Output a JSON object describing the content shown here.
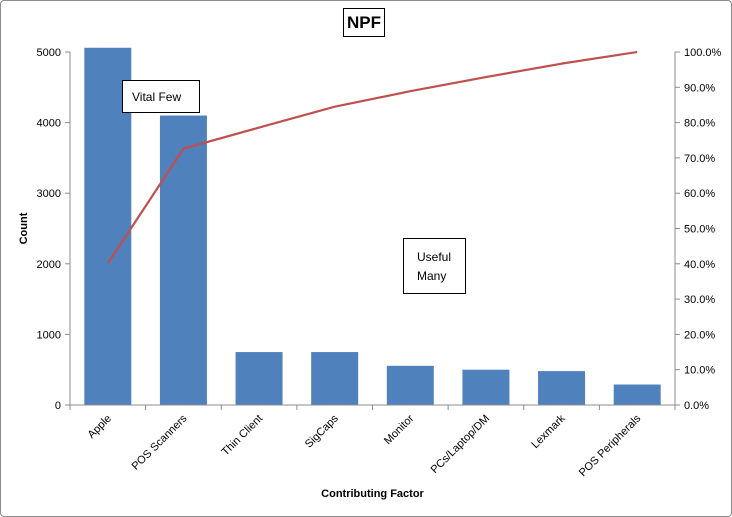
{
  "chart_data": {
    "type": "bar",
    "title": "NPF",
    "xlabel": "Contributing Factor",
    "ylabel": "Count",
    "categories": [
      "Apple",
      "POS Scanners",
      "Thin Client",
      "SigCaps",
      "Monitor",
      "PCs/Laptop/DM",
      "Lexmark",
      "POS Peripherals"
    ],
    "series": [
      {
        "type": "bar",
        "axis": "left",
        "color": "#4f81bd",
        "values": [
          5060,
          4100,
          750,
          750,
          555,
          500,
          480,
          290
        ]
      },
      {
        "type": "line",
        "axis": "right",
        "color": "#c0504d",
        "values": [
          40.1,
          72.6,
          78.6,
          84.5,
          88.9,
          92.9,
          96.7,
          100.0
        ]
      }
    ],
    "ylim": [
      0,
      5000
    ],
    "y_ticks": [
      "0",
      "1000",
      "2000",
      "3000",
      "4000",
      "5000"
    ],
    "y2lim": [
      0,
      100
    ],
    "y2_ticks": [
      "0.0%",
      "10.0%",
      "20.0%",
      "30.0%",
      "40.0%",
      "50.0%",
      "60.0%",
      "70.0%",
      "80.0%",
      "90.0%",
      "100.0%"
    ],
    "grid": false,
    "legend": "none",
    "annotations": [
      "Vital Few",
      "Useful Many"
    ]
  },
  "callouts": {
    "vital_few": "Vital Few",
    "useful_many_line1": "Useful",
    "useful_many_line2": "Many"
  }
}
